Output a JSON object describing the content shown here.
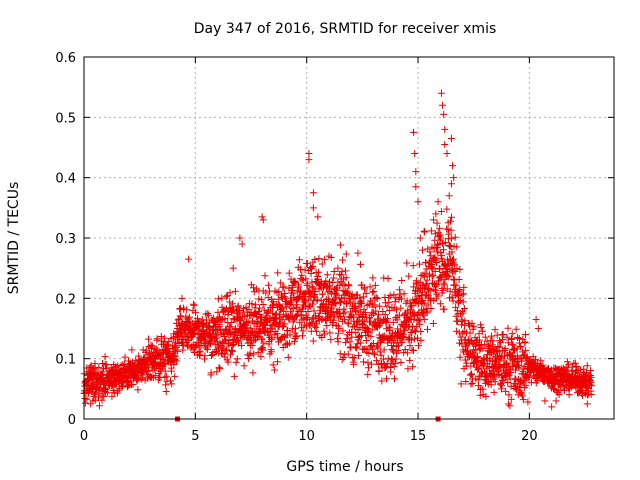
{
  "chart_data": {
    "type": "scatter",
    "title": "Day 347 of 2016, SRMTID for receiver xmis",
    "xlabel": "GPS time / hours",
    "ylabel": "SRMTID / TECUs",
    "xlim": [
      0,
      23.8
    ],
    "ylim": [
      0,
      0.6
    ],
    "xticks": [
      0,
      5,
      10,
      15,
      20
    ],
    "xtick_labels": [
      "0",
      "5",
      "10",
      "15",
      "20"
    ],
    "yticks": [
      0,
      0.1,
      0.2,
      0.3,
      0.4,
      0.5,
      0.6
    ],
    "ytick_labels": [
      "0",
      "0.1",
      "0.2",
      "0.3",
      "0.4",
      "0.5",
      "0.6"
    ],
    "grid": true,
    "marker": "plus",
    "color": "#ee0000",
    "profile": {
      "x": [
        0,
        1,
        2,
        3,
        4,
        4.3,
        5,
        6,
        7,
        8,
        9,
        10,
        11,
        12,
        13,
        14,
        15,
        16,
        16.5,
        17,
        17.5,
        18,
        19,
        20,
        21,
        22,
        22.8
      ],
      "y": [
        0.06,
        0.065,
        0.075,
        0.095,
        0.1,
        0.15,
        0.14,
        0.14,
        0.15,
        0.16,
        0.17,
        0.2,
        0.2,
        0.17,
        0.15,
        0.15,
        0.18,
        0.26,
        0.26,
        0.14,
        0.11,
        0.09,
        0.09,
        0.085,
        0.07,
        0.065,
        0.06
      ]
    },
    "spread": [
      0.025,
      0.035,
      0.05,
      0.06,
      0.07,
      0.07,
      0.05,
      0.02
    ],
    "points": [
      {
        "x": 10.1,
        "y": 0.44
      },
      {
        "x": 10.1,
        "y": 0.43
      },
      {
        "x": 10.3,
        "y": 0.375
      },
      {
        "x": 10.3,
        "y": 0.35
      },
      {
        "x": 10.5,
        "y": 0.335
      },
      {
        "x": 8.0,
        "y": 0.335
      },
      {
        "x": 8.05,
        "y": 0.33
      },
      {
        "x": 7.0,
        "y": 0.3
      },
      {
        "x": 7.1,
        "y": 0.29
      },
      {
        "x": 4.7,
        "y": 0.265
      },
      {
        "x": 14.8,
        "y": 0.475
      },
      {
        "x": 14.85,
        "y": 0.44
      },
      {
        "x": 14.9,
        "y": 0.41
      },
      {
        "x": 14.9,
        "y": 0.385
      },
      {
        "x": 15.0,
        "y": 0.36
      },
      {
        "x": 16.05,
        "y": 0.54
      },
      {
        "x": 16.1,
        "y": 0.52
      },
      {
        "x": 16.15,
        "y": 0.505
      },
      {
        "x": 16.2,
        "y": 0.48
      },
      {
        "x": 16.2,
        "y": 0.455
      },
      {
        "x": 16.3,
        "y": 0.44
      },
      {
        "x": 16.5,
        "y": 0.465
      },
      {
        "x": 16.55,
        "y": 0.42
      },
      {
        "x": 16.6,
        "y": 0.4
      },
      {
        "x": 16.5,
        "y": 0.39
      },
      {
        "x": 16.4,
        "y": 0.37
      },
      {
        "x": 15.9,
        "y": 0.36
      },
      {
        "x": 15.8,
        "y": 0.34
      },
      {
        "x": 15.7,
        "y": 0.33
      },
      {
        "x": 16.0,
        "y": 0.305
      },
      {
        "x": 15.9,
        "y": 0.29
      },
      {
        "x": 15.1,
        "y": 0.3
      },
      {
        "x": 15.3,
        "y": 0.31
      },
      {
        "x": 12.3,
        "y": 0.275
      },
      {
        "x": 11.0,
        "y": 0.27
      },
      {
        "x": 11.4,
        "y": 0.25
      },
      {
        "x": 15.2,
        "y": 0.28
      },
      {
        "x": 4.4,
        "y": 0.2
      },
      {
        "x": 6.7,
        "y": 0.25
      },
      {
        "x": 20.3,
        "y": 0.165
      },
      {
        "x": 20.4,
        "y": 0.15
      },
      {
        "x": 0.3,
        "y": 0.025
      },
      {
        "x": 0.4,
        "y": 0.03
      },
      {
        "x": 20.7,
        "y": 0.03
      },
      {
        "x": 21.2,
        "y": 0.03
      },
      {
        "x": 21.0,
        "y": 0.02
      },
      {
        "x": 22.6,
        "y": 0.025
      }
    ],
    "extra_marks": [
      {
        "x": 4.2,
        "y": 0
      },
      {
        "x": 15.9,
        "y": 0
      }
    ]
  }
}
